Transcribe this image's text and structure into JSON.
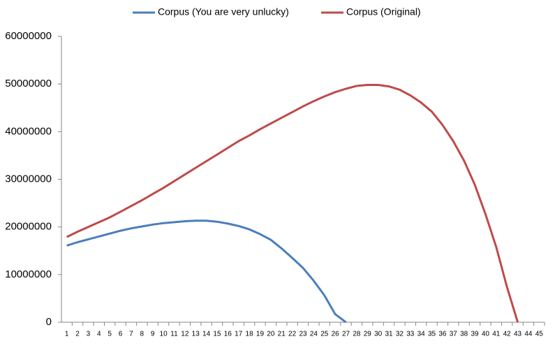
{
  "chart_data": {
    "type": "line",
    "categories": [
      "1",
      "2",
      "3",
      "4",
      "5",
      "6",
      "7",
      "8",
      "9",
      "10",
      "11",
      "12",
      "13",
      "14",
      "15",
      "16",
      "17",
      "18",
      "19",
      "20",
      "21",
      "22",
      "23",
      "24",
      "25",
      "26",
      "27",
      "28",
      "29",
      "30",
      "31",
      "32",
      "33",
      "34",
      "35",
      "36",
      "37",
      "38",
      "39",
      "40",
      "41",
      "42",
      "43",
      "44",
      "45"
    ],
    "series": [
      {
        "name": "Corpus (You are very unlucky)",
        "color": "#4a7ebb",
        "values": [
          16100000,
          16800000,
          17400000,
          18000000,
          18600000,
          19200000,
          19700000,
          20100000,
          20500000,
          20800000,
          21000000,
          21200000,
          21300000,
          21300000,
          21100000,
          20700000,
          20200000,
          19500000,
          18500000,
          17300000,
          15500000,
          13500000,
          11400000,
          8700000,
          5600000,
          1700000,
          0,
          null,
          null,
          null,
          null,
          null,
          null,
          null,
          null,
          null,
          null,
          null,
          null,
          null,
          null,
          null,
          null,
          null,
          null
        ]
      },
      {
        "name": "Corpus (Original)",
        "color": "#be4b48",
        "values": [
          17900000,
          19000000,
          20000000,
          21000000,
          22000000,
          23200000,
          24400000,
          25600000,
          26900000,
          28200000,
          29600000,
          31000000,
          32400000,
          33800000,
          35200000,
          36600000,
          38000000,
          39200000,
          40500000,
          41700000,
          42900000,
          44100000,
          45300000,
          46400000,
          47400000,
          48300000,
          49000000,
          49600000,
          49800000,
          49800000,
          49500000,
          48800000,
          47600000,
          46100000,
          44200000,
          41400000,
          38000000,
          33900000,
          28900000,
          22700000,
          15800000,
          7400000,
          0,
          null,
          null
        ]
      }
    ],
    "ylim": [
      0,
      60000000
    ],
    "yticks": [
      0,
      10000000,
      20000000,
      30000000,
      40000000,
      50000000,
      60000000
    ],
    "legend": "top",
    "grid": false
  }
}
